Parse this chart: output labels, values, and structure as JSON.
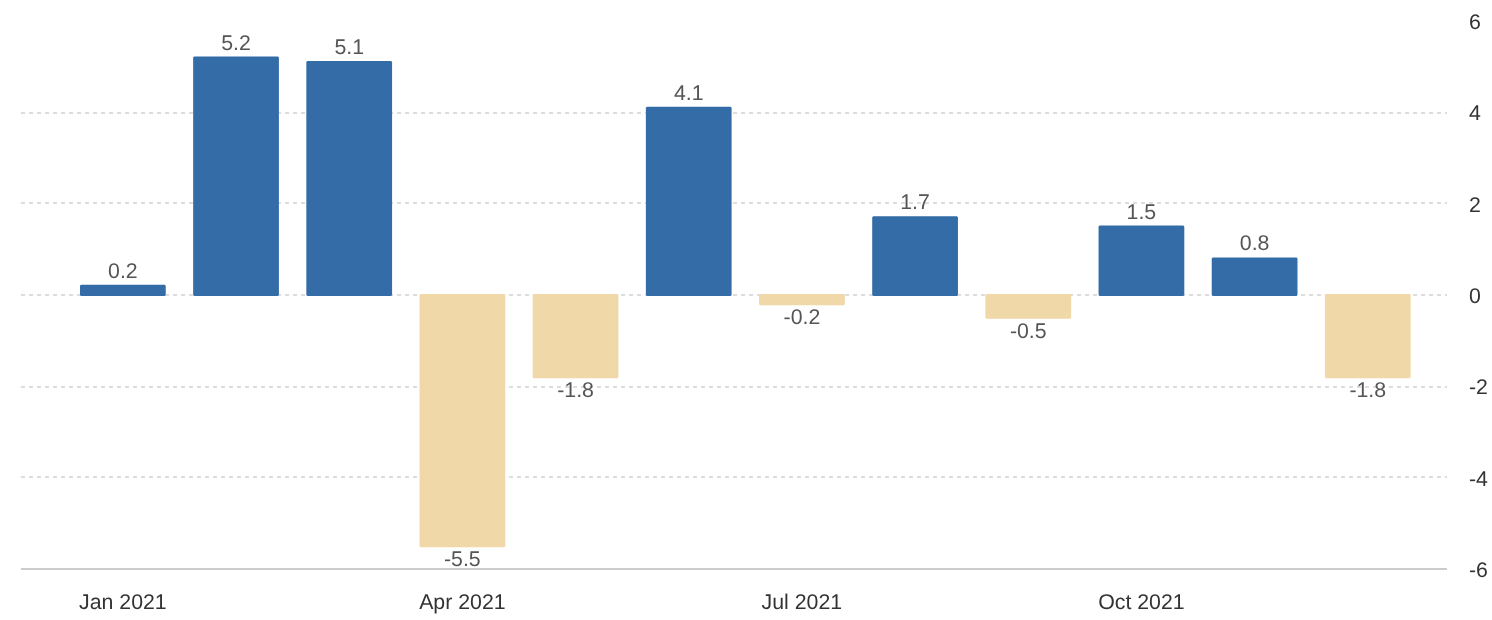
{
  "chart_data": {
    "type": "bar",
    "categories": [
      "Jan 2021",
      null,
      null,
      "Apr 2021",
      null,
      null,
      "Jul 2021",
      null,
      null,
      "Oct 2021",
      null,
      null
    ],
    "values": [
      0.2,
      5.2,
      5.1,
      -5.5,
      -1.8,
      4.1,
      -0.2,
      1.7,
      -0.5,
      1.5,
      0.8,
      -1.8
    ],
    "colors": [
      "#336ca6",
      "#336ca6",
      "#336ca6",
      "#f0d8a8",
      "#f0d8a8",
      "#336ca6",
      "#f0d8a8",
      "#336ca6",
      "#f0d8a8",
      "#336ca6",
      "#336ca6",
      "#f0d8a8"
    ],
    "ylim": [
      -6,
      6
    ],
    "yticks": [
      -6,
      -4,
      -2,
      0,
      2,
      4,
      6
    ],
    "grid": "y",
    "data_labels": true
  }
}
